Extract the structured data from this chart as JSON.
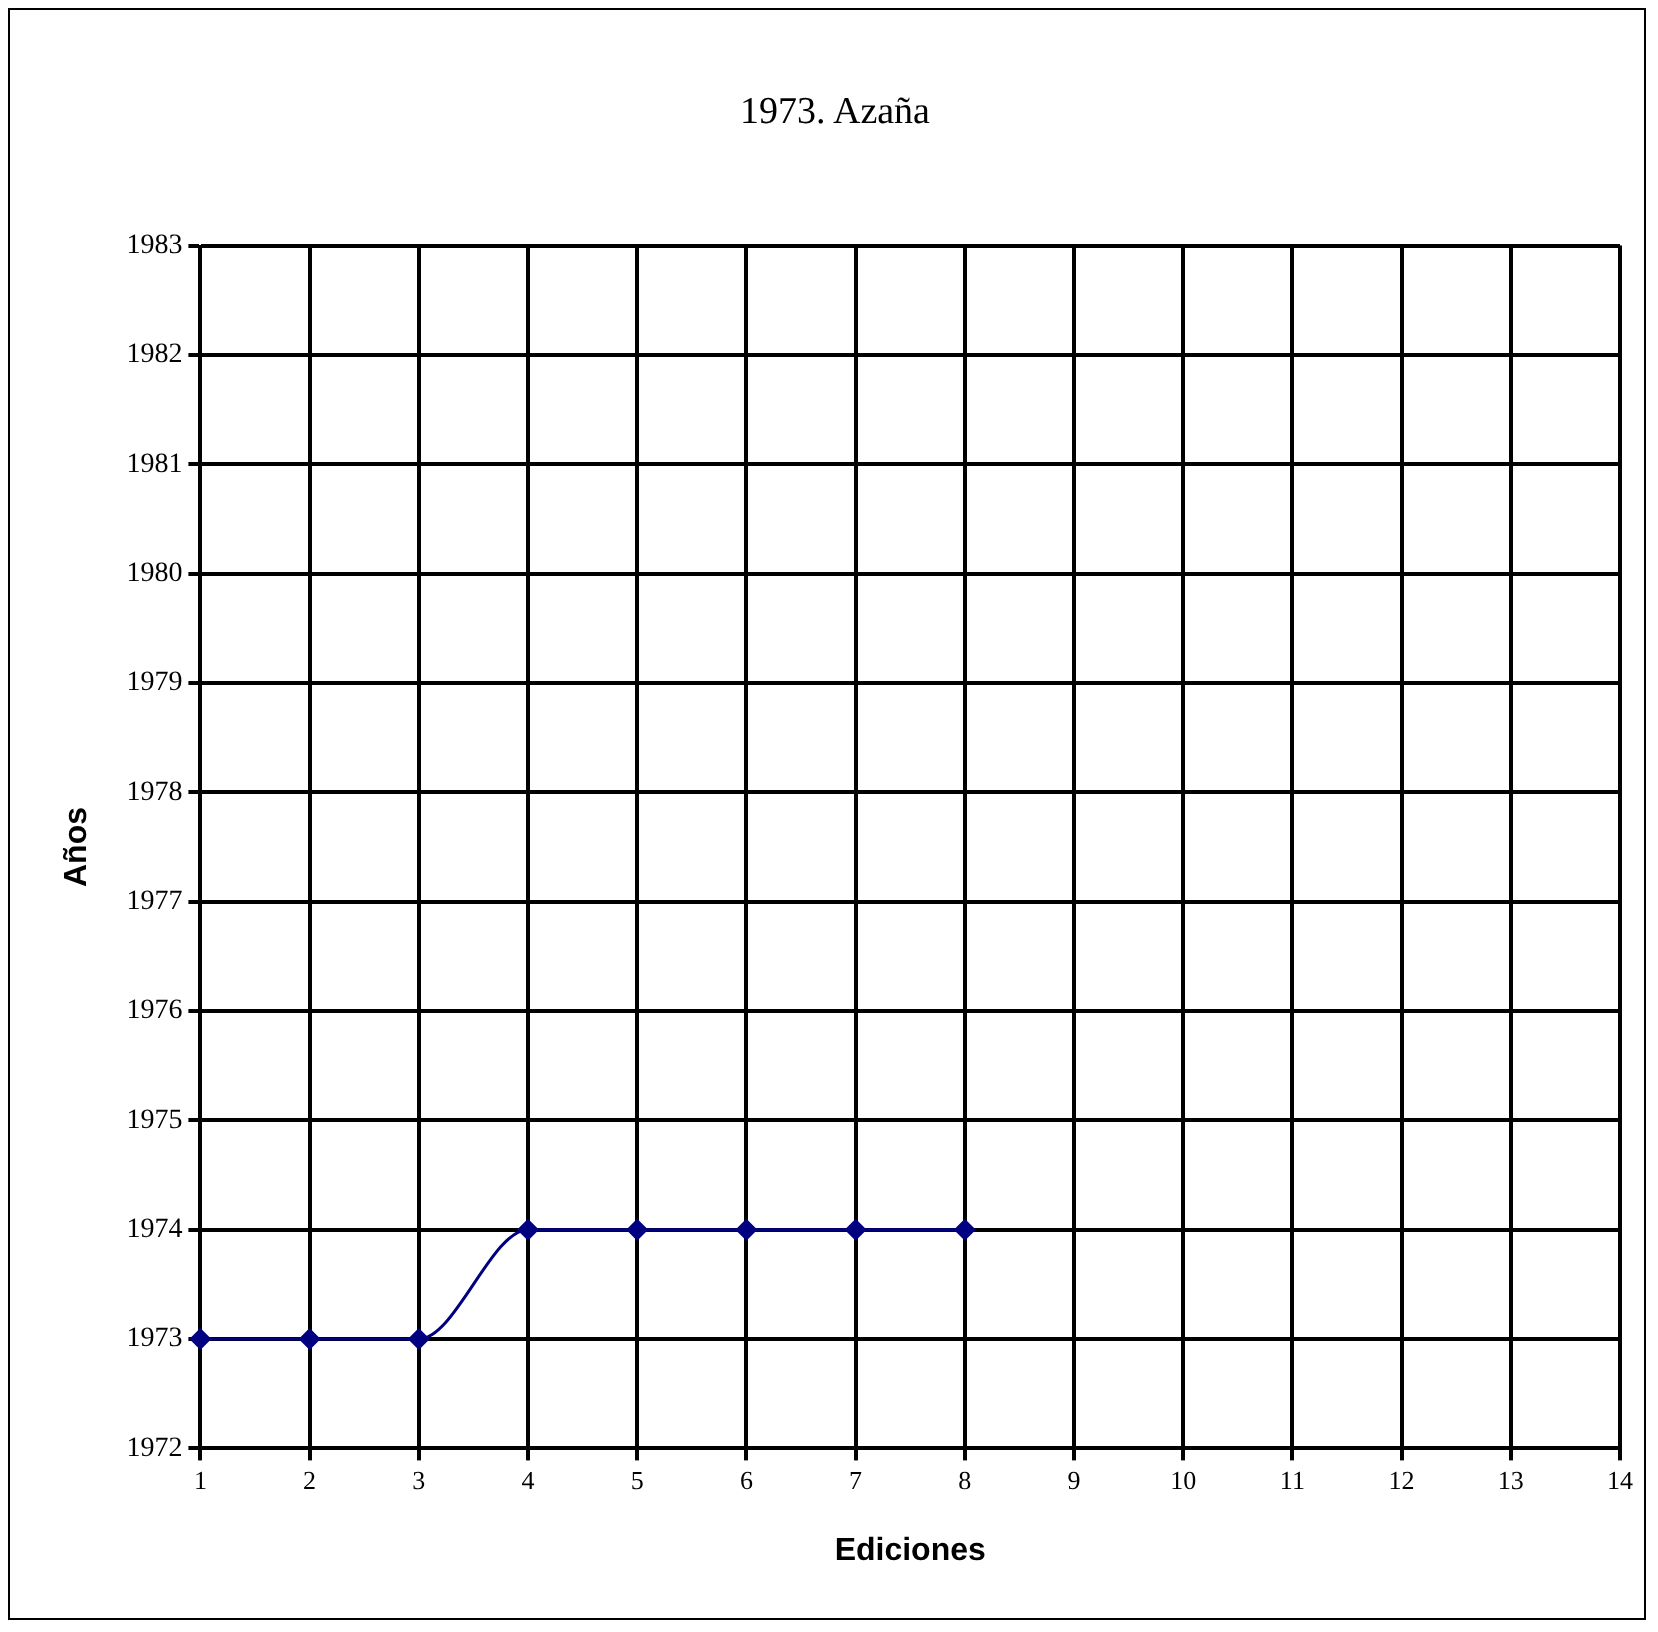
{
  "chart_data": {
    "type": "line",
    "title": "1973. Azaña",
    "xlabel": "Ediciones",
    "ylabel": "Años",
    "x": [
      1,
      2,
      3,
      4,
      5,
      6,
      7,
      8
    ],
    "series": [
      {
        "color": "#000080",
        "values": [
          1973,
          1973,
          1973,
          1974,
          1974,
          1974,
          1974,
          1974
        ]
      }
    ],
    "xlim": [
      1,
      14
    ],
    "xticks": [
      1,
      2,
      3,
      4,
      5,
      6,
      7,
      8,
      9,
      10,
      11,
      12,
      13,
      14
    ],
    "ylim": [
      1972,
      1983
    ],
    "yticks": [
      1972,
      1973,
      1974,
      1975,
      1976,
      1977,
      1978,
      1979,
      1980,
      1981,
      1982,
      1983
    ],
    "grid": true,
    "legend": false,
    "marker": "diamond",
    "line_style": "solid"
  }
}
